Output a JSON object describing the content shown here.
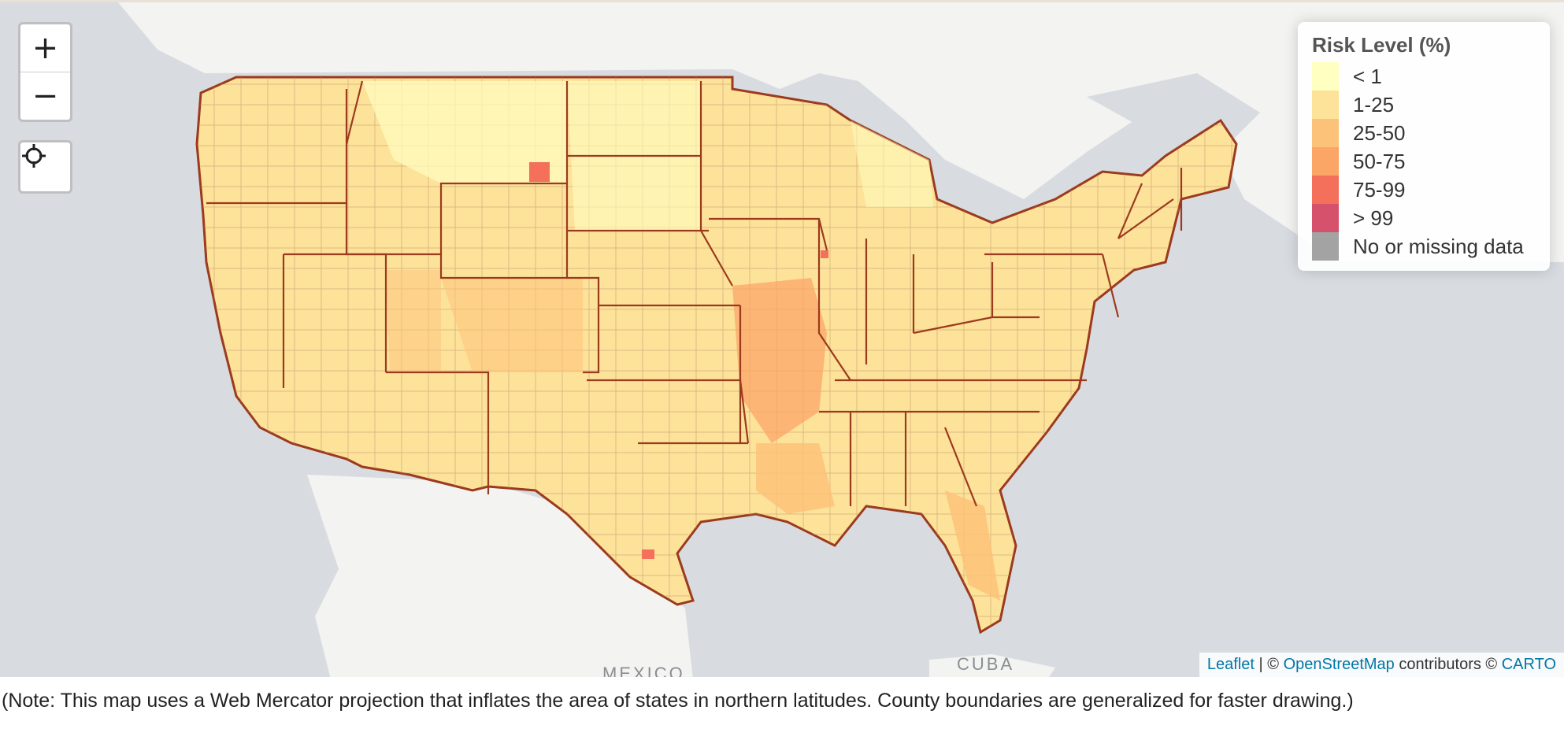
{
  "zoom": {
    "in_label": "+",
    "out_label": "−"
  },
  "legend": {
    "title": "Risk Level (%)",
    "items": [
      {
        "label": "< 1",
        "color": "#ffffc2"
      },
      {
        "label": "1-25",
        "color": "#fde29a"
      },
      {
        "label": "25-50",
        "color": "#fdc279"
      },
      {
        "label": "50-75",
        "color": "#fba567"
      },
      {
        "label": "75-99",
        "color": "#f4705b"
      },
      {
        "label": "> 99",
        "color": "#d6516b"
      },
      {
        "label": "No or missing data",
        "color": "#a3a3a3"
      }
    ]
  },
  "map_labels": {
    "mexico": "MEXICO",
    "cuba": "CUBA"
  },
  "attribution": {
    "leaflet": "Leaflet",
    "sep": "| ©",
    "osm": "OpenStreetMap",
    "contributors": "contributors ©",
    "carto": "CARTO"
  },
  "note": "(Note: This map uses a Web Mercator projection that inflates the area of states in northern latitudes. County boundaries are generalized for faster drawing.)"
}
